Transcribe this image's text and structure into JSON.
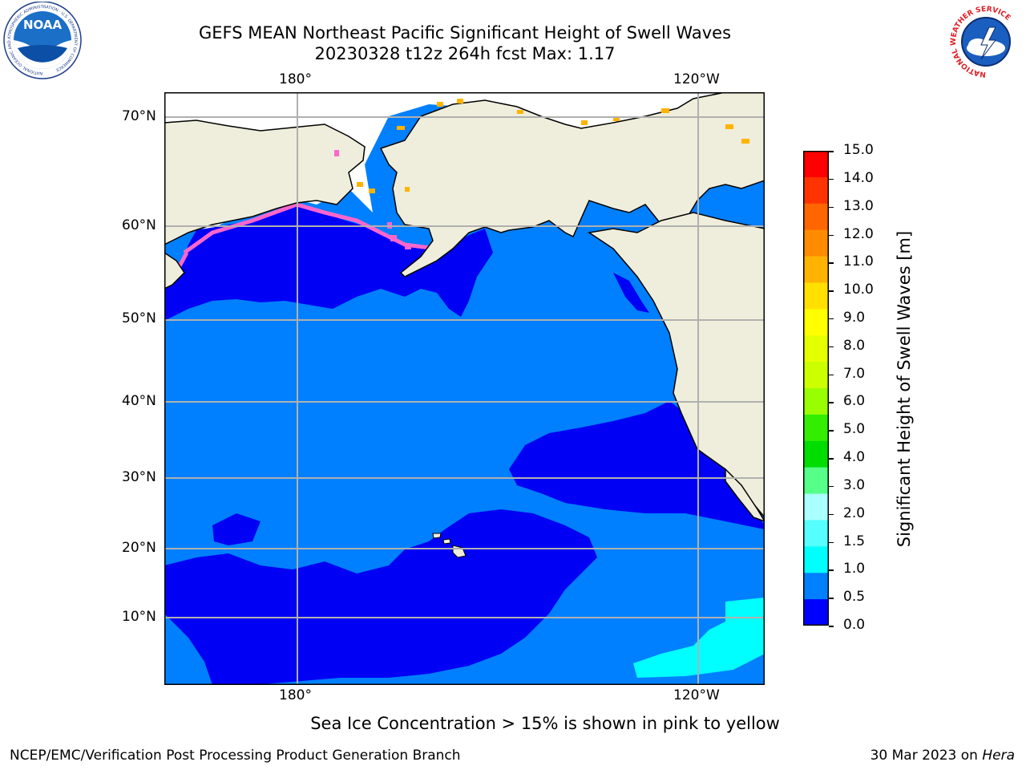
{
  "header": {
    "title_line1": "GEFS MEAN Northeast Pacific Significant Height of Swell Waves",
    "title_line2": "20230328 t12z 264h fcst   Max: 1.17"
  },
  "logos": {
    "left": "NOAA",
    "left_ring_text": "NATIONAL OCEANIC AND ATMOSPHERIC ADMINISTRATION · U.S. DEPARTMENT OF COMMERCE",
    "right_ring_text": "NATIONAL WEATHER SERVICE"
  },
  "map": {
    "lon_labels_top": [
      "180°",
      "120°W"
    ],
    "lon_labels_bottom": [
      "180°",
      "120°W"
    ],
    "lat_labels": [
      "70°N",
      "60°N",
      "50°N",
      "40°N",
      "30°N",
      "20°N",
      "10°N"
    ],
    "colors": {
      "land": "#efeedc",
      "ocean_0_0_5": "#0000f5",
      "ocean_0_5_1": "#0080ff",
      "ocean_1_1_5": "#00ffff",
      "sea_ice": "#ffffff",
      "ice_edge": "#ff66cc",
      "grid": "#b0b0b0"
    }
  },
  "colorbar": {
    "label": "Significant Height of Swell Waves [m]",
    "ticks": [
      "15.0",
      "14.0",
      "13.0",
      "12.0",
      "11.0",
      "10.0",
      "9.0",
      "8.0",
      "7.0",
      "6.0",
      "5.0",
      "4.0",
      "3.0",
      "2.0",
      "1.5",
      "1.0",
      "0.5",
      "0.0"
    ],
    "colors": [
      "#ff0000",
      "#ff3300",
      "#ff6600",
      "#ff8c00",
      "#ffb300",
      "#ffe000",
      "#ffff00",
      "#e6ff00",
      "#ccff00",
      "#99ff00",
      "#33ee00",
      "#00dd00",
      "#55ff88",
      "#aaffff",
      "#55ffff",
      "#00ffff",
      "#0080ff",
      "#0000ff"
    ]
  },
  "notes": {
    "sea_ice": "Sea Ice Concentration > 15% is shown in pink to yellow"
  },
  "footer": {
    "left": "NCEP/EMC/Verification Post Processing Product Generation Branch",
    "right_date": "30 Mar 2023 on ",
    "right_host": "Hera"
  }
}
